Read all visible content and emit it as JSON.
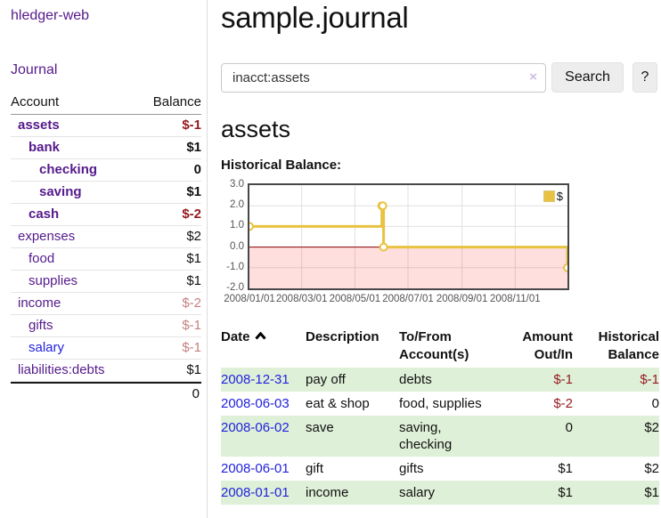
{
  "sidebar": {
    "brand": "hledger-web",
    "nav": {
      "journal": "Journal"
    },
    "table": {
      "account_header": "Account",
      "balance_header": "Balance",
      "rows": [
        {
          "account": "assets",
          "balance": "$-1",
          "level": 1,
          "bold": true,
          "account_color": "purple",
          "balance_color": "negative"
        },
        {
          "account": "bank",
          "balance": "$1",
          "level": 2,
          "bold": true,
          "account_color": "purple",
          "balance_color": "normal"
        },
        {
          "account": "checking",
          "balance": "0",
          "level": 3,
          "bold": true,
          "account_color": "purple",
          "balance_color": "normal"
        },
        {
          "account": "saving",
          "balance": "$1",
          "level": 3,
          "bold": true,
          "account_color": "purple",
          "balance_color": "normal"
        },
        {
          "account": "cash",
          "balance": "$-2",
          "level": 2,
          "bold": true,
          "account_color": "purple",
          "balance_color": "negative"
        },
        {
          "account": "expenses",
          "balance": "$2",
          "level": 1,
          "bold": false,
          "account_color": "purple",
          "balance_color": "normal"
        },
        {
          "account": "food",
          "balance": "$1",
          "level": 2,
          "bold": false,
          "account_color": "purple",
          "balance_color": "normal"
        },
        {
          "account": "supplies",
          "balance": "$1",
          "level": 2,
          "bold": false,
          "account_color": "purple",
          "balance_color": "normal"
        },
        {
          "account": "income",
          "balance": "$-2",
          "level": 1,
          "bold": false,
          "account_color": "purple",
          "balance_color": "negative-muted"
        },
        {
          "account": "gifts",
          "balance": "$-1",
          "level": 2,
          "bold": false,
          "account_color": "purple",
          "balance_color": "negative-muted"
        },
        {
          "account": "salary",
          "balance": "$-1",
          "level": 2,
          "bold": false,
          "account_color": "blue",
          "balance_color": "negative-muted"
        },
        {
          "account": "liabilities:debts",
          "balance": "$1",
          "level": 1,
          "bold": false,
          "account_color": "purple",
          "balance_color": "normal"
        }
      ],
      "total": "0"
    }
  },
  "main": {
    "title": "sample.journal",
    "search": {
      "value": "inacct:assets",
      "clear_icon": "×",
      "button": "Search",
      "help": "?"
    },
    "account_heading": "assets",
    "chart_label": "Historical Balance:"
  },
  "chart_data": {
    "type": "line",
    "step": true,
    "title": "Historical Balance",
    "series": [
      {
        "name": "$",
        "color": "#e8c240",
        "points": [
          [
            "2008-01-01",
            1
          ],
          [
            "2008-06-01",
            2
          ],
          [
            "2008-06-02",
            2
          ],
          [
            "2008-06-03",
            0
          ],
          [
            "2008-12-31",
            -1
          ]
        ]
      }
    ],
    "ylim": [
      -2,
      3
    ],
    "yticks": [
      3,
      2,
      1,
      0,
      -1,
      -2
    ],
    "ytick_labels": [
      "3.0",
      "2.0",
      "1.0",
      "0.0",
      "-1.0",
      "-2.0"
    ],
    "xticks": [
      "2008/01/01",
      "2008/03/01",
      "2008/05/01",
      "2008/07/01",
      "2008/09/01",
      "2008/11/01"
    ],
    "grid": true,
    "legend_position": "top-right",
    "negative_region_color": "rgba(255,0,0,0.13)",
    "zero_line_color": "#8b0000",
    "grid_color": "#e0e0e0"
  },
  "register": {
    "headers": {
      "date": "Date",
      "description": "Description",
      "accounts": "To/From Account(s)",
      "amount": "Amount Out/In",
      "balance": "Historical Balance"
    },
    "sort": {
      "column": "date",
      "direction": "asc"
    },
    "rows": [
      {
        "date": "2008-12-31",
        "description": "pay off",
        "accounts": "debts",
        "amount": "$-1",
        "amount_color": "negative",
        "balance": "$-1",
        "balance_color": "negative",
        "highlight": true
      },
      {
        "date": "2008-06-03",
        "description": "eat & shop",
        "accounts": "food, supplies",
        "amount": "$-2",
        "amount_color": "negative",
        "balance": "0",
        "balance_color": "normal",
        "highlight": false
      },
      {
        "date": "2008-06-02",
        "description": "save",
        "accounts": "saving, checking",
        "amount": "0",
        "amount_color": "normal",
        "balance": "$2",
        "balance_color": "normal",
        "highlight": true
      },
      {
        "date": "2008-06-01",
        "description": "gift",
        "accounts": "gifts",
        "amount": "$1",
        "amount_color": "normal",
        "balance": "$2",
        "balance_color": "normal",
        "highlight": false
      },
      {
        "date": "2008-01-01",
        "description": "income",
        "accounts": "salary",
        "amount": "$1",
        "amount_color": "normal",
        "balance": "$1",
        "balance_color": "normal",
        "highlight": true
      }
    ]
  }
}
